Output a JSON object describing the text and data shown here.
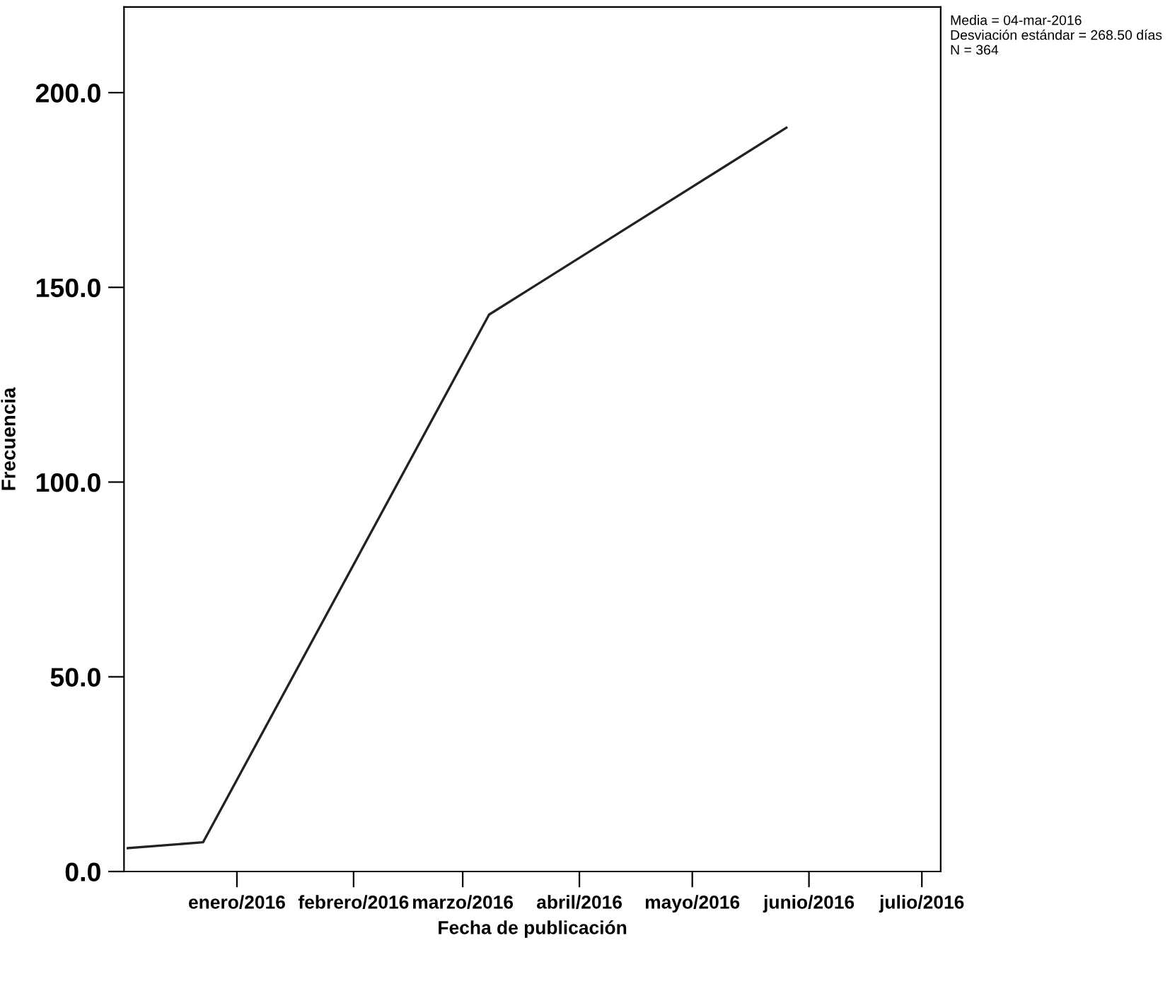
{
  "chart_data": {
    "type": "line",
    "xlabel": "Fecha de publicación",
    "ylabel": "Frecuencia",
    "x": [
      "2015-12-03",
      "2015-12-23",
      "2016-03-08",
      "2016-05-26"
    ],
    "series": [
      {
        "color": "#222222",
        "values": [
          6,
          7.5,
          143,
          191
        ]
      }
    ],
    "xlim": [
      "2015-12-02",
      "2016-07-06"
    ],
    "xticks": [
      {
        "value": "2016-01-01",
        "label": "enero/2016"
      },
      {
        "value": "2016-02-01",
        "label": "febrero/2016"
      },
      {
        "value": "2016-03-01",
        "label": "marzo/2016"
      },
      {
        "value": "2016-04-01",
        "label": "abril/2016"
      },
      {
        "value": "2016-05-01",
        "label": "mayo/2016"
      },
      {
        "value": "2016-06-01",
        "label": "junio/2016"
      },
      {
        "value": "2016-07-01",
        "label": "julio/2016"
      }
    ],
    "ylim": [
      0,
      222
    ],
    "yticks": [
      {
        "value": 0,
        "label": "0.0"
      },
      {
        "value": 50,
        "label": "50.0"
      },
      {
        "value": 100,
        "label": "100.0"
      },
      {
        "value": 150,
        "label": "150.0"
      },
      {
        "value": 200,
        "label": "200.0"
      }
    ],
    "annotations": [
      "Media = 04-mar-2016\nDesviación estándar = 268.50 días\nN = 364"
    ],
    "grid": false,
    "legend": false,
    "marker": "none",
    "line_style": "solid"
  }
}
